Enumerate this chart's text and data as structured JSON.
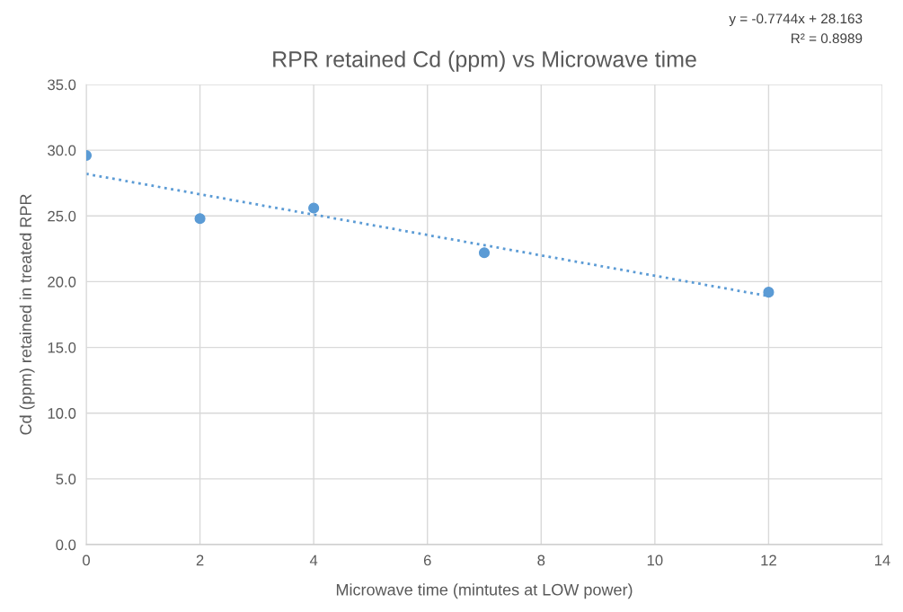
{
  "chart_data": {
    "type": "scatter",
    "title": "RPR retained Cd (ppm) vs Microwave time",
    "xlabel": "Microwave time (mintutes at LOW power)",
    "ylabel": "Cd (ppm) retained in treated RPR",
    "series": [
      {
        "color": "#5b9bd5",
        "x": [
          0,
          2,
          4,
          7,
          12
        ],
        "values": [
          29.6,
          24.8,
          25.6,
          22.2,
          19.2
        ],
        "marker": "circle"
      },
      {
        "type": "line",
        "color": "#5b9bd5",
        "x": [
          0,
          12
        ],
        "values": [
          28.2,
          18.9
        ],
        "line_style": "dotted",
        "marker": "none"
      }
    ],
    "xlim": [
      0,
      14
    ],
    "xticks": [
      0,
      2,
      4,
      6,
      8,
      10,
      12,
      14
    ],
    "ylim": [
      0,
      35
    ],
    "yticks": [
      {
        "value": 0,
        "label": "0.0"
      },
      {
        "value": 5,
        "label": "5.0"
      },
      {
        "value": 10,
        "label": "10.0"
      },
      {
        "value": 15,
        "label": "15.0"
      },
      {
        "value": 20,
        "label": "20.0"
      },
      {
        "value": 25,
        "label": "25.0"
      },
      {
        "value": 30,
        "label": "30.0"
      },
      {
        "value": 35,
        "label": "35.0"
      }
    ],
    "grid": true,
    "legend": false,
    "annotations": [
      "y = -0.7744x + 28.163",
      "R² = 0.8989"
    ]
  }
}
